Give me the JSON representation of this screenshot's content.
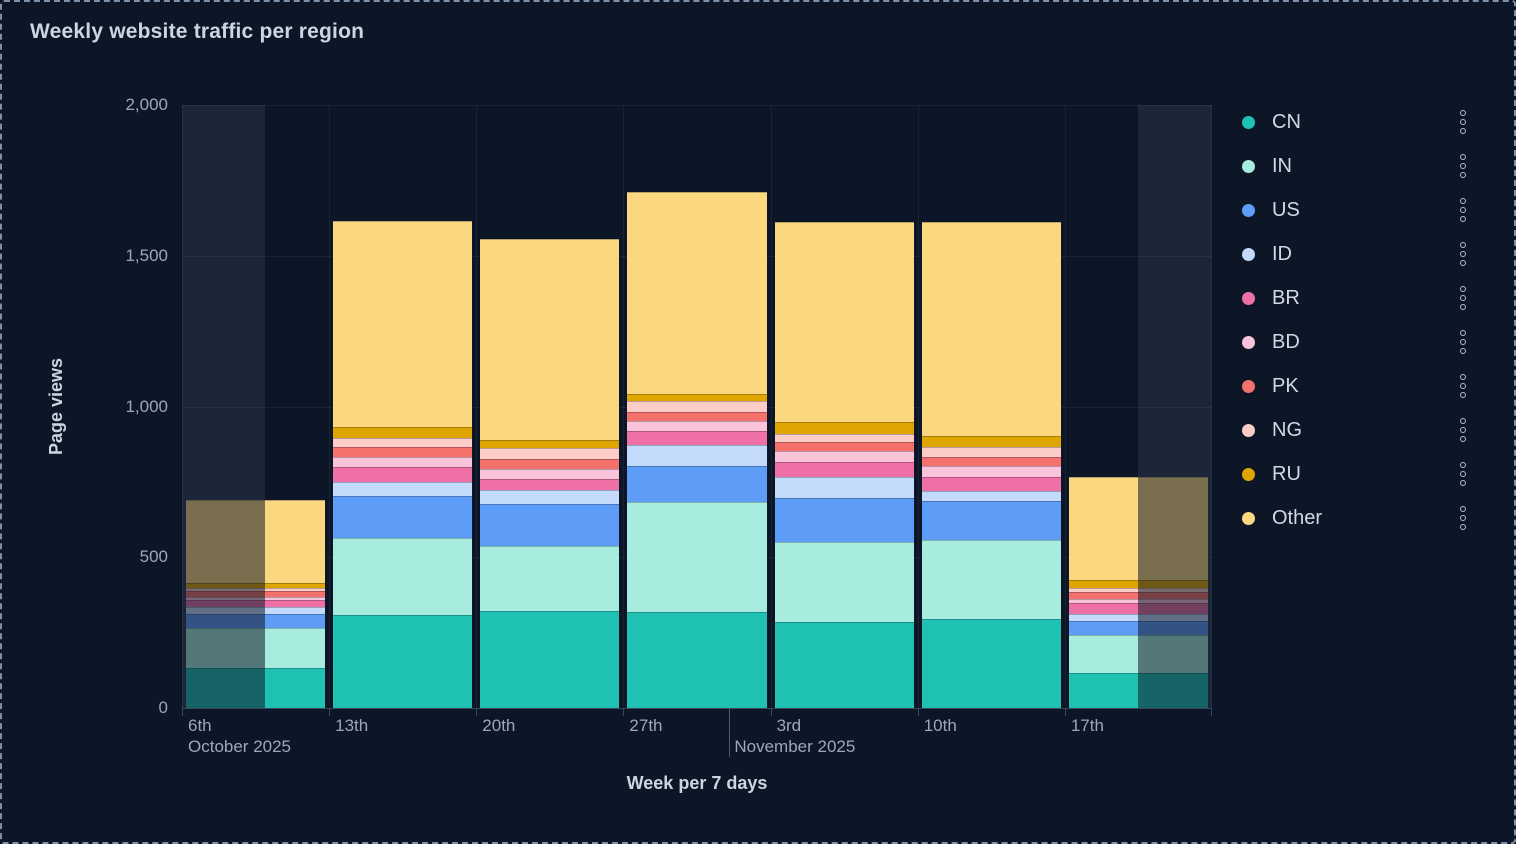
{
  "panel": {
    "title": "Weekly website traffic per region"
  },
  "chart_data": {
    "type": "bar",
    "stacked": true,
    "title": "Weekly website traffic per region",
    "xlabel": "Week per 7 days",
    "ylabel": "Page views",
    "ylim": [
      0,
      2000
    ],
    "grid": true,
    "legend_position": "right",
    "ytick_values": [
      0,
      500,
      1000,
      1500,
      2000
    ],
    "ytick_labels": [
      "0",
      "500",
      "1,000",
      "1,500",
      "2,000"
    ],
    "categories": [
      "6th",
      "13th",
      "20th",
      "27th",
      "3rd",
      "10th",
      "17th"
    ],
    "month_annotations": [
      {
        "text": "October 2025",
        "category_index": 0,
        "divider_fraction": null
      },
      {
        "text": "November 2025",
        "category_index": 3,
        "divider_fraction": 0.72
      }
    ],
    "series": [
      {
        "name": "CN",
        "color": "#1fc2b2",
        "values": [
          133,
          309,
          322,
          319,
          286,
          296,
          117
        ]
      },
      {
        "name": "IN",
        "color": "#a8ecdf",
        "values": [
          133,
          256,
          216,
          365,
          265,
          261,
          124
        ]
      },
      {
        "name": "US",
        "color": "#5d9cf7",
        "values": [
          46,
          139,
          140,
          120,
          147,
          130,
          47
        ]
      },
      {
        "name": "ID",
        "color": "#c3dafb",
        "values": [
          24,
          47,
          46,
          69,
          69,
          33,
          25
        ]
      },
      {
        "name": "BR",
        "color": "#ee70a6",
        "values": [
          23,
          50,
          37,
          46,
          48,
          47,
          34
        ]
      },
      {
        "name": "BD",
        "color": "#f9c3da",
        "values": [
          10,
          33,
          33,
          33,
          38,
          37,
          14
        ]
      },
      {
        "name": "PK",
        "color": "#f4716c",
        "values": [
          20,
          33,
          33,
          31,
          28,
          30,
          24
        ]
      },
      {
        "name": "NG",
        "color": "#fbcdc6",
        "values": [
          10,
          30,
          37,
          34,
          27,
          33,
          14
        ]
      },
      {
        "name": "RU",
        "color": "#dfa602",
        "values": [
          16,
          37,
          26,
          24,
          40,
          36,
          25
        ]
      },
      {
        "name": "Other",
        "color": "#fbd87f",
        "values": [
          276,
          681,
          665,
          670,
          663,
          708,
          343
        ]
      }
    ],
    "bar_totals": [
      691,
      1615,
      1555,
      1711,
      1611,
      1611,
      767
    ],
    "out_of_time_range": [
      {
        "category_index": 0,
        "side": "left",
        "bar_fraction": 0.57
      },
      {
        "category_index": 6,
        "side": "right",
        "bar_fraction": 0.5
      }
    ]
  },
  "legend": {
    "items": [
      {
        "label": "CN"
      },
      {
        "label": "IN"
      },
      {
        "label": "US"
      },
      {
        "label": "ID"
      },
      {
        "label": "BR"
      },
      {
        "label": "BD"
      },
      {
        "label": "PK"
      },
      {
        "label": "NG"
      },
      {
        "label": "RU"
      },
      {
        "label": "Other"
      }
    ],
    "item_menu_icon": "kebab-menu-icon"
  },
  "colors": {
    "background": "#0d1626",
    "out_of_range_band": "#1c2638",
    "border": "#7d90aa",
    "axis": "#38475f",
    "tick_text": "#9ba8bc",
    "title_text": "#ccd5e1",
    "legend_text": "#d2d9e4"
  }
}
